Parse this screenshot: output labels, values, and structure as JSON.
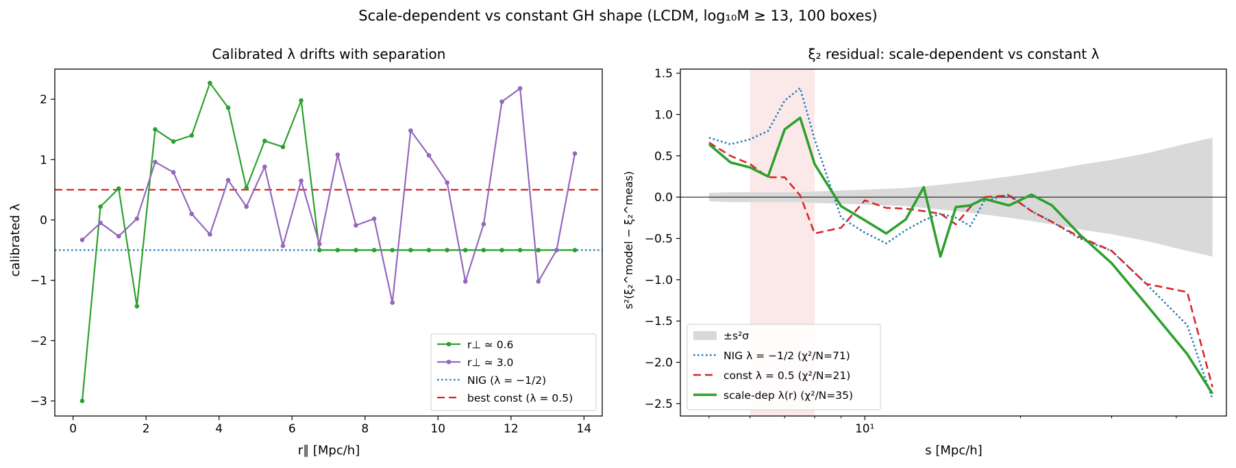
{
  "figure": {
    "suptitle": "Scale-dependent vs constant GH shape (LCDM, log₁₀M ≥ 13, 100 boxes)"
  },
  "chart_data": [
    {
      "type": "line",
      "title": "Calibrated λ drifts with separation",
      "xlabel": "r∥ [Mpc/h]",
      "ylabel": "calibrated λ",
      "xlim": [
        -0.5,
        14.5
      ],
      "ylim": [
        -3.25,
        2.5
      ],
      "xticks": [
        0,
        2,
        4,
        6,
        8,
        10,
        12,
        14
      ],
      "xtick_labels": [
        "0",
        "2",
        "4",
        "6",
        "8",
        "10",
        "12",
        "14"
      ],
      "yticks": [
        -3,
        -2,
        -1,
        0,
        1,
        2
      ],
      "ytick_labels": [
        "−3",
        "−2",
        "−1",
        "0",
        "1",
        "2"
      ],
      "grid": false,
      "legend_position": "lower-right",
      "x": [
        0.25,
        0.75,
        1.25,
        1.75,
        2.25,
        2.75,
        3.25,
        3.75,
        4.25,
        4.75,
        5.25,
        5.75,
        6.25,
        6.75,
        7.25,
        7.75,
        8.25,
        8.75,
        9.25,
        9.75,
        10.25,
        10.75,
        11.25,
        11.75,
        12.25,
        12.75,
        13.25,
        13.75
      ],
      "series": [
        {
          "name": "r⊥ ≃ 0.6",
          "color": "#2ca02c",
          "style": "solid-marker",
          "values": [
            -3.0,
            0.22,
            0.52,
            -1.43,
            1.5,
            1.3,
            1.4,
            2.27,
            1.86,
            0.53,
            1.31,
            1.21,
            1.98,
            -0.5,
            -0.5,
            -0.5,
            -0.5,
            -0.5,
            -0.5,
            -0.5,
            -0.5,
            -0.5,
            -0.5,
            -0.5,
            -0.5,
            -0.5,
            -0.5,
            -0.5
          ]
        },
        {
          "name": "r⊥ ≃ 3.0",
          "color": "#9467bd",
          "style": "solid-marker",
          "values": [
            -0.33,
            -0.05,
            -0.27,
            0.02,
            0.96,
            0.79,
            0.1,
            -0.24,
            0.66,
            0.22,
            0.88,
            -0.43,
            0.65,
            -0.4,
            1.08,
            -0.09,
            0.02,
            -1.37,
            1.48,
            1.07,
            0.62,
            -1.02,
            -0.07,
            1.96,
            2.18,
            -1.02,
            -0.5,
            1.1
          ]
        },
        {
          "name": "NIG (λ = −1/2)",
          "color": "#1f77b4",
          "style": "dotted",
          "hline": -0.5
        },
        {
          "name": "best const (λ = 0.5)",
          "color": "#d62728",
          "style": "dashed",
          "hline": 0.5
        }
      ]
    },
    {
      "type": "line",
      "title": "ξ₂ residual: scale-dependent vs constant λ",
      "xlabel": "s [Mpc/h]",
      "ylabel": "s²(ξ₂^model − ξ₂^meas)",
      "xscale": "log",
      "xlim": [
        4.4,
        50
      ],
      "ylim": [
        -2.65,
        1.55
      ],
      "xticks_major": [
        10
      ],
      "xtick_labels": [
        "10¹"
      ],
      "xticks_minor": [
        5,
        6,
        7,
        8,
        9,
        20,
        30,
        40
      ],
      "yticks": [
        -2.5,
        -2.0,
        -1.5,
        -1.0,
        -0.5,
        0.0,
        0.5,
        1.0,
        1.5
      ],
      "ytick_labels": [
        "−2.5",
        "−2.0",
        "−1.5",
        "−1.0",
        "−0.5",
        "0.0",
        "0.5",
        "1.0",
        "1.5"
      ],
      "grid": false,
      "legend_position": "lower-left",
      "zero_line": 0,
      "shaded_span": {
        "x": [
          6.0,
          8.0
        ],
        "color": "#f8d7d7"
      },
      "x": [
        5.0,
        5.5,
        6.0,
        6.5,
        7.0,
        7.5,
        8.0,
        9.0,
        10.0,
        11.0,
        12.0,
        13.0,
        14.0,
        15.0,
        16.0,
        17.0,
        19.0,
        21.0,
        23.0,
        26.0,
        30.0,
        35.0,
        42.0,
        47.0
      ],
      "band": {
        "name": "±s²σ",
        "color": "#d9d9d9",
        "halfwidth": [
          0.05,
          0.06,
          0.06,
          0.06,
          0.06,
          0.06,
          0.07,
          0.08,
          0.09,
          0.1,
          0.11,
          0.13,
          0.15,
          0.17,
          0.19,
          0.21,
          0.25,
          0.29,
          0.33,
          0.39,
          0.45,
          0.53,
          0.65,
          0.72
        ]
      },
      "series": [
        {
          "name": "NIG λ = −1/2 (χ²/N=71)",
          "color": "#1f77b4",
          "style": "dotted",
          "values": [
            0.72,
            0.64,
            0.7,
            0.8,
            1.17,
            1.32,
            0.7,
            -0.25,
            -0.43,
            -0.56,
            -0.4,
            -0.28,
            -0.2,
            -0.25,
            -0.35,
            -0.05,
            0.03,
            -0.17,
            -0.3,
            -0.5,
            -0.65,
            -1.05,
            -1.55,
            -2.45
          ]
        },
        {
          "name": "const λ = 0.5 (χ²/N=21)",
          "color": "#d62728",
          "style": "dashed",
          "values": [
            0.66,
            0.5,
            0.4,
            0.24,
            0.24,
            0.02,
            -0.44,
            -0.37,
            -0.04,
            -0.13,
            -0.14,
            -0.17,
            -0.2,
            -0.33,
            -0.12,
            0.0,
            0.02,
            -0.17,
            -0.3,
            -0.48,
            -0.65,
            -1.05,
            -1.15,
            -2.3
          ]
        },
        {
          "name": "scale-dep λ(r) (χ²/N=35)",
          "color": "#2ca02c",
          "style": "solid-thick",
          "values": [
            0.64,
            0.42,
            0.36,
            0.25,
            0.82,
            0.96,
            0.4,
            -0.11,
            -0.28,
            -0.44,
            -0.27,
            0.12,
            -0.72,
            -0.12,
            -0.1,
            -0.02,
            -0.1,
            0.03,
            -0.1,
            -0.45,
            -0.8,
            -1.3,
            -1.9,
            -2.38
          ]
        }
      ]
    }
  ]
}
